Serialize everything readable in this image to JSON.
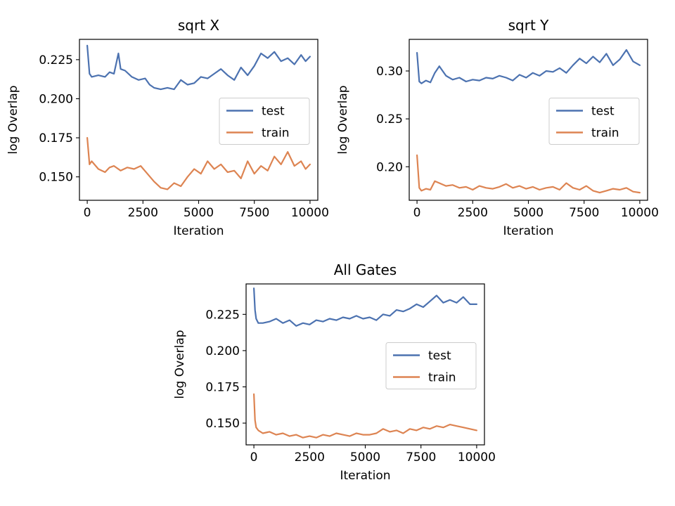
{
  "chart_data": [
    {
      "type": "line",
      "title": "sqrt X",
      "xlabel": "Iteration",
      "ylabel": "log Overlap",
      "xlim": [
        -350,
        10350
      ],
      "ylim": [
        0.135,
        0.238
      ],
      "xticks": [
        0,
        2500,
        5000,
        7500,
        10000
      ],
      "xtick_labels": [
        "0",
        "2500",
        "5000",
        "7500",
        "10000"
      ],
      "yticks": [
        0.15,
        0.175,
        0.2,
        0.225
      ],
      "ytick_labels": [
        "0.150",
        "0.175",
        "0.200",
        "0.225"
      ],
      "legend": "center-right",
      "grid": false,
      "series": [
        {
          "name": "test",
          "color": "#4c72b0",
          "x": [
            0,
            100,
            200,
            500,
            800,
            1000,
            1200,
            1400,
            1500,
            1700,
            2000,
            2300,
            2600,
            2800,
            3000,
            3300,
            3600,
            3900,
            4200,
            4500,
            4800,
            5100,
            5400,
            5700,
            6000,
            6300,
            6600,
            6900,
            7200,
            7500,
            7800,
            8100,
            8400,
            8700,
            9000,
            9300,
            9600,
            9800,
            10000
          ],
          "y": [
            0.234,
            0.216,
            0.214,
            0.215,
            0.214,
            0.217,
            0.216,
            0.229,
            0.219,
            0.218,
            0.214,
            0.212,
            0.213,
            0.209,
            0.207,
            0.206,
            0.207,
            0.206,
            0.212,
            0.209,
            0.21,
            0.214,
            0.213,
            0.216,
            0.219,
            0.215,
            0.212,
            0.22,
            0.215,
            0.221,
            0.229,
            0.226,
            0.23,
            0.224,
            0.226,
            0.222,
            0.228,
            0.224,
            0.227
          ]
        },
        {
          "name": "train",
          "color": "#dd8452",
          "x": [
            0,
            100,
            200,
            500,
            800,
            1000,
            1200,
            1500,
            1800,
            2100,
            2400,
            2700,
            3000,
            3300,
            3600,
            3900,
            4200,
            4500,
            4800,
            5100,
            5400,
            5700,
            6000,
            6300,
            6600,
            6900,
            7200,
            7500,
            7800,
            8100,
            8400,
            8700,
            9000,
            9300,
            9600,
            9800,
            10000
          ],
          "y": [
            0.175,
            0.158,
            0.16,
            0.155,
            0.153,
            0.156,
            0.157,
            0.154,
            0.156,
            0.155,
            0.157,
            0.152,
            0.147,
            0.143,
            0.142,
            0.146,
            0.144,
            0.15,
            0.155,
            0.152,
            0.16,
            0.155,
            0.158,
            0.153,
            0.154,
            0.149,
            0.16,
            0.152,
            0.157,
            0.154,
            0.163,
            0.158,
            0.166,
            0.157,
            0.16,
            0.155,
            0.158
          ]
        }
      ]
    },
    {
      "type": "line",
      "title": "sqrt Y",
      "xlabel": "Iteration",
      "ylabel": "log Overlap",
      "xlim": [
        -350,
        10350
      ],
      "ylim": [
        0.165,
        0.333
      ],
      "xticks": [
        0,
        2500,
        5000,
        7500,
        10000
      ],
      "xtick_labels": [
        "0",
        "2500",
        "5000",
        "7500",
        "10000"
      ],
      "yticks": [
        0.2,
        0.25,
        0.3
      ],
      "ytick_labels": [
        "0.20",
        "0.25",
        "0.30"
      ],
      "legend": "center-right",
      "grid": false,
      "series": [
        {
          "name": "test",
          "color": "#4c72b0",
          "x": [
            0,
            100,
            200,
            400,
            600,
            800,
            1000,
            1300,
            1600,
            1900,
            2200,
            2500,
            2800,
            3100,
            3400,
            3700,
            4000,
            4300,
            4600,
            4900,
            5200,
            5500,
            5800,
            6100,
            6400,
            6700,
            7000,
            7300,
            7600,
            7900,
            8200,
            8500,
            8800,
            9100,
            9400,
            9700,
            10000
          ],
          "y": [
            0.319,
            0.289,
            0.287,
            0.29,
            0.288,
            0.298,
            0.305,
            0.295,
            0.291,
            0.293,
            0.289,
            0.291,
            0.29,
            0.293,
            0.292,
            0.295,
            0.293,
            0.29,
            0.296,
            0.293,
            0.298,
            0.295,
            0.3,
            0.299,
            0.303,
            0.298,
            0.306,
            0.313,
            0.308,
            0.315,
            0.309,
            0.318,
            0.306,
            0.312,
            0.322,
            0.31,
            0.306
          ]
        },
        {
          "name": "train",
          "color": "#dd8452",
          "x": [
            0,
            100,
            200,
            400,
            600,
            800,
            1000,
            1300,
            1600,
            1900,
            2200,
            2500,
            2800,
            3100,
            3400,
            3700,
            4000,
            4300,
            4600,
            4900,
            5200,
            5500,
            5800,
            6100,
            6400,
            6700,
            7000,
            7300,
            7600,
            7900,
            8200,
            8500,
            8800,
            9100,
            9400,
            9700,
            10000
          ],
          "y": [
            0.212,
            0.178,
            0.175,
            0.177,
            0.176,
            0.185,
            0.183,
            0.18,
            0.181,
            0.178,
            0.179,
            0.176,
            0.18,
            0.178,
            0.177,
            0.179,
            0.182,
            0.178,
            0.18,
            0.177,
            0.179,
            0.176,
            0.178,
            0.179,
            0.176,
            0.183,
            0.178,
            0.176,
            0.18,
            0.175,
            0.173,
            0.175,
            0.177,
            0.176,
            0.178,
            0.174,
            0.173
          ]
        }
      ]
    },
    {
      "type": "line",
      "title": "All Gates",
      "xlabel": "Iteration",
      "ylabel": "log Overlap",
      "xlim": [
        -350,
        10350
      ],
      "ylim": [
        0.135,
        0.246
      ],
      "xticks": [
        0,
        2500,
        5000,
        7500,
        10000
      ],
      "xtick_labels": [
        "0",
        "2500",
        "5000",
        "7500",
        "10000"
      ],
      "yticks": [
        0.15,
        0.175,
        0.2,
        0.225
      ],
      "ytick_labels": [
        "0.150",
        "0.175",
        "0.200",
        "0.225"
      ],
      "legend": "center-right",
      "grid": false,
      "series": [
        {
          "name": "test",
          "color": "#4c72b0",
          "x": [
            0,
            50,
            100,
            200,
            400,
            700,
            1000,
            1300,
            1600,
            1900,
            2200,
            2500,
            2800,
            3100,
            3400,
            3700,
            4000,
            4300,
            4600,
            4900,
            5200,
            5500,
            5800,
            6100,
            6400,
            6700,
            7000,
            7300,
            7600,
            7900,
            8200,
            8500,
            8800,
            9100,
            9400,
            9700,
            10000
          ],
          "y": [
            0.243,
            0.228,
            0.222,
            0.219,
            0.219,
            0.22,
            0.222,
            0.219,
            0.221,
            0.217,
            0.219,
            0.218,
            0.221,
            0.22,
            0.222,
            0.221,
            0.223,
            0.222,
            0.224,
            0.222,
            0.223,
            0.221,
            0.225,
            0.224,
            0.228,
            0.227,
            0.229,
            0.232,
            0.23,
            0.234,
            0.238,
            0.233,
            0.235,
            0.233,
            0.237,
            0.232,
            0.232
          ]
        },
        {
          "name": "train",
          "color": "#dd8452",
          "x": [
            0,
            50,
            100,
            200,
            400,
            700,
            1000,
            1300,
            1600,
            1900,
            2200,
            2500,
            2800,
            3100,
            3400,
            3700,
            4000,
            4300,
            4600,
            4900,
            5200,
            5500,
            5800,
            6100,
            6400,
            6700,
            7000,
            7300,
            7600,
            7900,
            8200,
            8500,
            8800,
            9100,
            9400,
            9700,
            10000
          ],
          "y": [
            0.17,
            0.152,
            0.147,
            0.145,
            0.143,
            0.144,
            0.142,
            0.143,
            0.141,
            0.142,
            0.14,
            0.141,
            0.14,
            0.142,
            0.141,
            0.143,
            0.142,
            0.141,
            0.143,
            0.142,
            0.142,
            0.143,
            0.146,
            0.144,
            0.145,
            0.143,
            0.146,
            0.145,
            0.147,
            0.146,
            0.148,
            0.147,
            0.149,
            0.148,
            0.147,
            0.146,
            0.145
          ]
        }
      ]
    }
  ]
}
